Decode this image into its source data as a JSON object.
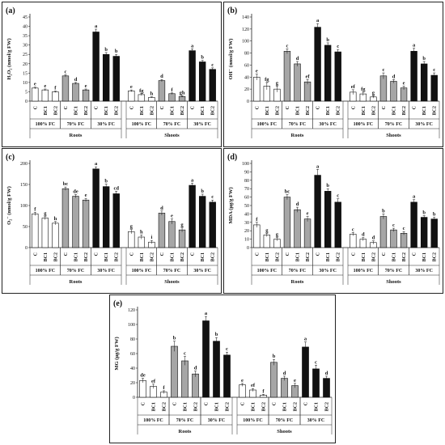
{
  "chart_data": [
    {
      "panel_label": "(a)",
      "type": "bar",
      "ylabel": "H₂O₂ (nmol/g FW)",
      "ylim": [
        0,
        45
      ],
      "yticks": [
        0,
        5,
        10,
        15,
        20,
        25,
        30,
        35,
        40,
        45
      ],
      "categories": [
        "C",
        "BC1",
        "BC2"
      ],
      "groups": [
        "100% FC",
        "70% FC",
        "30% FC"
      ],
      "organs": [
        "Roots",
        "Shoots"
      ],
      "colors": {
        "100% FC": "#ffffff",
        "70% FC": "#a6a6a6",
        "30% FC": "#111111"
      },
      "series": [
        {
          "organ": "Roots",
          "group": "100% FC",
          "values": [
            7.0,
            6.0,
            5.0
          ],
          "errors": [
            0.5,
            0.5,
            0.4
          ],
          "letters": [
            "e",
            "e",
            "f"
          ]
        },
        {
          "organ": "Roots",
          "group": "70% FC",
          "values": [
            13.5,
            9.5,
            6.0
          ],
          "errors": [
            0.6,
            0.5,
            0.5
          ],
          "letters": [
            "c",
            "d",
            "e"
          ]
        },
        {
          "organ": "Roots",
          "group": "30% FC",
          "values": [
            37.0,
            25.0,
            24.0
          ],
          "errors": [
            1.5,
            1.0,
            1.0
          ],
          "letters": [
            "a",
            "b",
            "b"
          ]
        },
        {
          "organ": "Shoots",
          "group": "100% FC",
          "values": [
            5.5,
            3.5,
            2.0
          ],
          "errors": [
            0.5,
            0.5,
            0.3
          ],
          "letters": [
            "e",
            "fg",
            "h"
          ]
        },
        {
          "organ": "Shoots",
          "group": "70% FC",
          "values": [
            11.0,
            4.0,
            2.5
          ],
          "errors": [
            0.6,
            0.4,
            0.4
          ],
          "letters": [
            "d",
            "f",
            "gh"
          ]
        },
        {
          "organ": "Shoots",
          "group": "30% FC",
          "values": [
            27.0,
            21.0,
            17.0
          ],
          "errors": [
            1.0,
            0.8,
            0.8
          ],
          "letters": [
            "a",
            "b",
            "c"
          ]
        }
      ]
    },
    {
      "panel_label": "(b)",
      "type": "bar",
      "ylabel": "OH⁻ (nmol/g FW)",
      "ylim": [
        0,
        140
      ],
      "yticks": [
        0,
        20,
        40,
        60,
        80,
        100,
        120,
        140
      ],
      "categories": [
        "C",
        "BC1",
        "BC2"
      ],
      "groups": [
        "100% FC",
        "70% FC",
        "30% FC"
      ],
      "organs": [
        "Roots",
        "Shoots"
      ],
      "colors": {
        "100% FC": "#ffffff",
        "70% FC": "#a6a6a6",
        "30% FC": "#111111"
      },
      "series": [
        {
          "organ": "Roots",
          "group": "100% FC",
          "values": [
            40,
            25,
            20
          ],
          "errors": [
            5,
            6,
            5
          ],
          "letters": [
            "e",
            "fg",
            "g"
          ]
        },
        {
          "organ": "Roots",
          "group": "70% FC",
          "values": [
            83,
            62,
            32
          ],
          "errors": [
            4,
            4,
            4
          ],
          "letters": [
            "c",
            "d",
            "ef"
          ]
        },
        {
          "organ": "Roots",
          "group": "30% FC",
          "values": [
            123,
            93,
            82
          ],
          "errors": [
            6,
            4,
            4
          ],
          "letters": [
            "a",
            "b",
            "c"
          ]
        },
        {
          "organ": "Shoots",
          "group": "100% FC",
          "values": [
            15,
            12,
            7
          ],
          "errors": [
            4,
            3,
            2
          ],
          "letters": [
            "ef",
            "fg",
            "g"
          ]
        },
        {
          "organ": "Shoots",
          "group": "70% FC",
          "values": [
            42,
            33,
            22
          ],
          "errors": [
            5,
            3,
            3
          ],
          "letters": [
            "c",
            "d",
            "e"
          ]
        },
        {
          "organ": "Shoots",
          "group": "30% FC",
          "values": [
            83,
            62,
            43
          ],
          "errors": [
            5,
            4,
            4
          ],
          "letters": [
            "a",
            "b",
            "c"
          ]
        }
      ]
    },
    {
      "panel_label": "(c)",
      "type": "bar",
      "ylabel": "O₂⁻ (nmol/g FW)",
      "ylim": [
        0,
        200
      ],
      "yticks": [
        0,
        50,
        100,
        150,
        200
      ],
      "categories": [
        "C",
        "BC1",
        "BC2"
      ],
      "groups": [
        "100% FC",
        "70% FC",
        "30% FC"
      ],
      "organs": [
        "Roots",
        "Shoots"
      ],
      "colors": {
        "100% FC": "#ffffff",
        "70% FC": "#a6a6a6",
        "30% FC": "#111111"
      },
      "series": [
        {
          "organ": "Roots",
          "group": "100% FC",
          "values": [
            80,
            70,
            58
          ],
          "errors": [
            4,
            4,
            4
          ],
          "letters": [
            "f",
            "g",
            "h"
          ]
        },
        {
          "organ": "Roots",
          "group": "70% FC",
          "values": [
            140,
            122,
            113
          ],
          "errors": [
            4,
            4,
            4
          ],
          "letters": [
            "bc",
            "de",
            "e"
          ]
        },
        {
          "organ": "Roots",
          "group": "30% FC",
          "values": [
            187,
            145,
            128
          ],
          "errors": [
            5,
            6,
            6
          ],
          "letters": [
            "a",
            "b",
            "cd"
          ]
        },
        {
          "organ": "Shoots",
          "group": "100% FC",
          "values": [
            38,
            25,
            13
          ],
          "errors": [
            5,
            5,
            4
          ],
          "letters": [
            "g",
            "h",
            "i"
          ]
        },
        {
          "organ": "Shoots",
          "group": "70% FC",
          "values": [
            82,
            62,
            42
          ],
          "errors": [
            5,
            6,
            5
          ],
          "letters": [
            "d",
            "e",
            "g"
          ]
        },
        {
          "organ": "Shoots",
          "group": "30% FC",
          "values": [
            148,
            122,
            108
          ],
          "errors": [
            5,
            5,
            5
          ],
          "letters": [
            "a",
            "b",
            "c"
          ]
        }
      ]
    },
    {
      "panel_label": "(d)",
      "type": "bar",
      "ylabel": "MDA (µg/g FW)",
      "ylim": [
        0,
        100
      ],
      "yticks": [
        0,
        10,
        20,
        30,
        40,
        50,
        60,
        70,
        80,
        90,
        100
      ],
      "categories": [
        "C",
        "BC1",
        "BC2"
      ],
      "groups": [
        "100% FC",
        "70% FC",
        "30% FC"
      ],
      "organs": [
        "Roots",
        "Shoots"
      ],
      "colors": {
        "100% FC": "#ffffff",
        "70% FC": "#a6a6a6",
        "30% FC": "#111111"
      },
      "series": [
        {
          "organ": "Roots",
          "group": "100% FC",
          "values": [
            27,
            15,
            10
          ],
          "errors": [
            3,
            2,
            2
          ],
          "letters": [
            "f",
            "g",
            "g"
          ]
        },
        {
          "organ": "Roots",
          "group": "70% FC",
          "values": [
            60,
            45,
            34
          ],
          "errors": [
            3,
            3,
            3
          ],
          "letters": [
            "bc",
            "d",
            "e"
          ]
        },
        {
          "organ": "Roots",
          "group": "30% FC",
          "values": [
            86,
            67,
            54
          ],
          "errors": [
            7,
            3,
            4
          ],
          "letters": [
            "a",
            "b",
            "c"
          ]
        },
        {
          "organ": "Shoots",
          "group": "100% FC",
          "values": [
            16,
            10,
            6
          ],
          "errors": [
            2,
            2,
            2
          ],
          "letters": [
            "c",
            "d",
            "d"
          ]
        },
        {
          "organ": "Shoots",
          "group": "70% FC",
          "values": [
            37,
            21,
            17
          ],
          "errors": [
            3,
            2,
            2
          ],
          "letters": [
            "b",
            "c",
            "c"
          ]
        },
        {
          "organ": "Shoots",
          "group": "30% FC",
          "values": [
            54,
            36,
            34
          ],
          "errors": [
            3,
            2,
            2
          ],
          "letters": [
            "a",
            "b",
            "b"
          ]
        }
      ]
    },
    {
      "panel_label": "(e)",
      "type": "bar",
      "ylabel": "MG (µg/g FW)",
      "ylim": [
        0,
        120
      ],
      "yticks": [
        0,
        20,
        40,
        60,
        80,
        100,
        120
      ],
      "categories": [
        "C",
        "BC1",
        "BC2"
      ],
      "groups": [
        "100% FC",
        "70% FC",
        "30% FC"
      ],
      "organs": [
        "Roots",
        "Shoots"
      ],
      "colors": {
        "100% FC": "#ffffff",
        "70% FC": "#a6a6a6",
        "30% FC": "#111111"
      },
      "series": [
        {
          "organ": "Roots",
          "group": "100% FC",
          "values": [
            23,
            15,
            7
          ],
          "errors": [
            3,
            3,
            2
          ],
          "letters": [
            "de",
            "ef",
            "f"
          ]
        },
        {
          "organ": "Roots",
          "group": "70% FC",
          "values": [
            70,
            50,
            32
          ],
          "errors": [
            7,
            6,
            4
          ],
          "letters": [
            "b",
            "c",
            "d"
          ]
        },
        {
          "organ": "Roots",
          "group": "30% FC",
          "values": [
            105,
            77,
            58
          ],
          "errors": [
            6,
            5,
            4
          ],
          "letters": [
            "a",
            "b",
            "c"
          ]
        },
        {
          "organ": "Shoots",
          "group": "100% FC",
          "values": [
            17,
            10,
            3
          ],
          "errors": [
            2,
            2,
            1
          ],
          "letters": [
            "e",
            "ef",
            "f"
          ]
        },
        {
          "organ": "Shoots",
          "group": "70% FC",
          "values": [
            48,
            26,
            16
          ],
          "errors": [
            4,
            3,
            3
          ],
          "letters": [
            "b",
            "d",
            "e"
          ]
        },
        {
          "organ": "Shoots",
          "group": "30% FC",
          "values": [
            69,
            39,
            26
          ],
          "errors": [
            7,
            5,
            3
          ],
          "letters": [
            "a",
            "c",
            "d"
          ]
        }
      ]
    }
  ]
}
